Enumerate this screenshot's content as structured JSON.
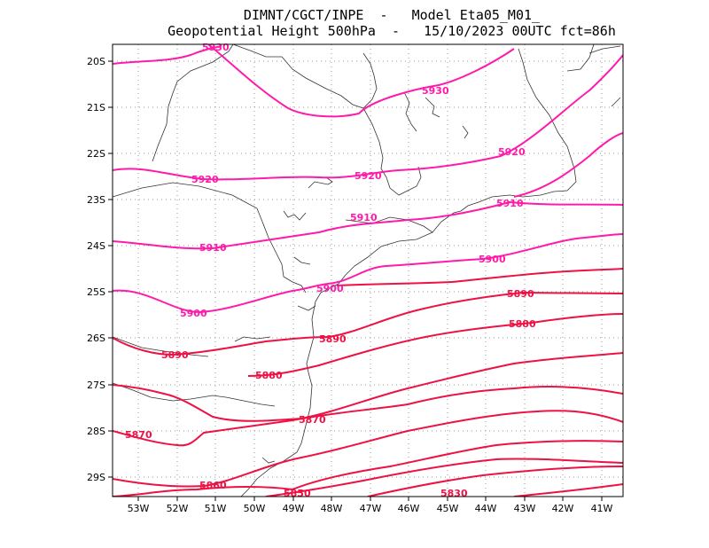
{
  "header": {
    "line1": "DIMNT/CGCT/INPE  -   Model Eta05_M01_",
    "line2": "Geopotential Height 500hPa  -   15/10/2023 00UTC fct=86h"
  },
  "map": {
    "lat_labels": [
      "20S",
      "21S",
      "22S",
      "23S",
      "24S",
      "25S",
      "26S",
      "27S",
      "28S",
      "29S"
    ],
    "lon_labels": [
      "53W",
      "52W",
      "51W",
      "50W",
      "49W",
      "48W",
      "47W",
      "46W",
      "45W",
      "44W",
      "43W",
      "42W",
      "41W"
    ],
    "contour_color_high": "#ff1aaa",
    "contour_color_low": "#ee1144",
    "coast_color": "#333333",
    "grid": "dotted",
    "contour_labels": [
      "5930",
      "5930",
      "5920",
      "5920",
      "5920",
      "5910",
      "5910",
      "5910",
      "5900",
      "5900",
      "5900",
      "5890",
      "5890",
      "5890",
      "5880",
      "5880",
      "5870",
      "5870",
      "5860",
      "5850",
      "5830"
    ]
  }
}
